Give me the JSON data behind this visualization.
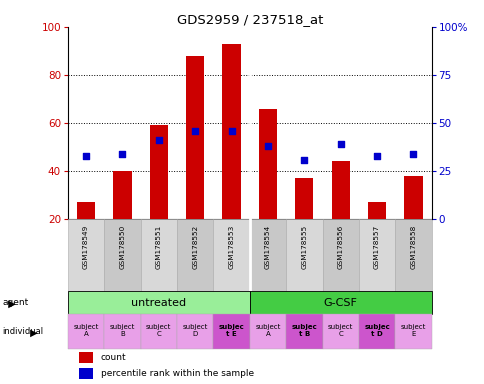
{
  "title": "GDS2959 / 237518_at",
  "samples": [
    "GSM178549",
    "GSM178550",
    "GSM178551",
    "GSM178552",
    "GSM178553",
    "GSM178554",
    "GSM178555",
    "GSM178556",
    "GSM178557",
    "GSM178558"
  ],
  "counts": [
    27,
    40,
    59,
    88,
    93,
    66,
    37,
    44,
    27,
    38
  ],
  "percentiles": [
    33,
    34,
    41,
    46,
    46,
    38,
    31,
    39,
    33,
    34
  ],
  "y_min": 20,
  "y_max": 100,
  "perc_min": 0,
  "perc_max": 100,
  "perc_ticks": [
    0,
    25,
    50,
    75,
    100
  ],
  "perc_tick_labels": [
    "0",
    "25",
    "50",
    "75",
    "100%"
  ],
  "count_ticks": [
    20,
    40,
    60,
    80,
    100
  ],
  "dotted_lines": [
    40,
    60,
    80
  ],
  "bar_color": "#cc0000",
  "dot_color": "#0000cc",
  "agent_groups": [
    {
      "label": "untreated",
      "start": 0,
      "end": 5,
      "color": "#99ee99"
    },
    {
      "label": "G-CSF",
      "start": 5,
      "end": 10,
      "color": "#44cc44"
    }
  ],
  "individual_labels": [
    {
      "label": "subject\nA",
      "idx": 0,
      "bold": false
    },
    {
      "label": "subject\nB",
      "idx": 1,
      "bold": false
    },
    {
      "label": "subject\nC",
      "idx": 2,
      "bold": false
    },
    {
      "label": "subject\nD",
      "idx": 3,
      "bold": false
    },
    {
      "label": "subjec\nt E",
      "idx": 4,
      "bold": true
    },
    {
      "label": "subject\nA",
      "idx": 5,
      "bold": false
    },
    {
      "label": "subjec\nt B",
      "idx": 6,
      "bold": true
    },
    {
      "label": "subject\nC",
      "idx": 7,
      "bold": false
    },
    {
      "label": "subjec\nt D",
      "idx": 8,
      "bold": true
    },
    {
      "label": "subject\nE",
      "idx": 9,
      "bold": false
    }
  ],
  "individual_bg": [
    "#e8a0e8",
    "#e8a0e8",
    "#e8a0e8",
    "#e8a0e8",
    "#cc55cc",
    "#e8a0e8",
    "#cc55cc",
    "#e8a0e8",
    "#cc55cc",
    "#e8a0e8"
  ],
  "legend_items": [
    {
      "label": "count",
      "color": "#cc0000"
    },
    {
      "label": "percentile rank within the sample",
      "color": "#0000cc"
    }
  ],
  "xlabel_color_left": "#cc0000",
  "xlabel_color_right": "#0000cc",
  "bar_width": 0.5,
  "gsm_cell_colors": [
    "#d8d8d8",
    "#c8c8c8",
    "#d8d8d8",
    "#c8c8c8",
    "#d8d8d8",
    "#c8c8c8",
    "#d8d8d8",
    "#c8c8c8",
    "#d8d8d8",
    "#c8c8c8"
  ]
}
